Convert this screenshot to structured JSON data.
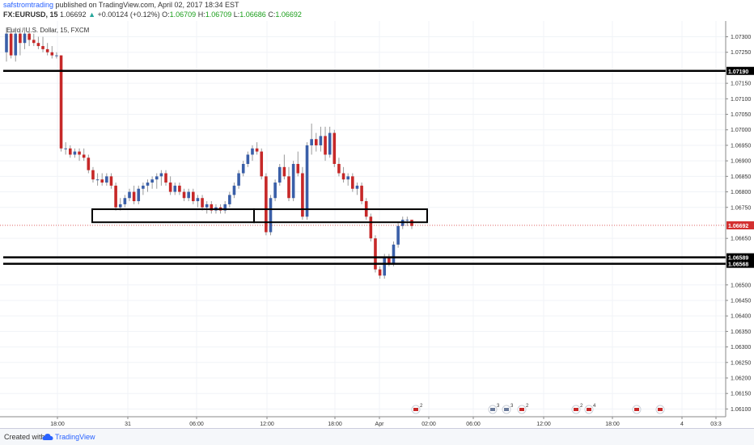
{
  "header": {
    "author": "safstromtrading",
    "published": "published on TradingView.com, April 02, 2017 18:34 EST",
    "symbol": "FX:EURUSD, 15",
    "price": "1.06692",
    "change": "+0.00124 (+0.12%)",
    "o_label": "O:",
    "o_value": "1.06709",
    "h_label": "H:",
    "h_value": "1.06709",
    "l_label": "L:",
    "l_value": "1.06686",
    "c_label": "C:",
    "c_value": "1.06692",
    "up_arrow": "▲"
  },
  "legend": {
    "text": "Euro / U.S. Dollar, 15, FXCM"
  },
  "footer": {
    "created_with": "Created with",
    "brand": "TradingView"
  },
  "colors": {
    "bull": "#3a5fa8",
    "bear": "#c62828",
    "wick": "#999999",
    "current_price": "#d32f2f",
    "box": "#000000"
  },
  "chart_data": {
    "type": "candlestick",
    "y_range": [
      1.06075,
      1.0733
    ],
    "y_ticks": [
      "1.07300",
      "1.07250",
      "1.07150",
      "1.07100",
      "1.07050",
      "1.07000",
      "1.06950",
      "1.06900",
      "1.06850",
      "1.06800",
      "1.06750",
      "1.06650",
      "1.06500",
      "1.06450",
      "1.06400",
      "1.06350",
      "1.06300",
      "1.06250",
      "1.06200",
      "1.06150",
      "1.06100"
    ],
    "x_ticks": [
      "18:00",
      "31",
      "06:00",
      "12:00",
      "18:00",
      "Apr",
      "02:00",
      "06:00",
      "12:00",
      "18:00",
      "4",
      "03:3"
    ],
    "labeled_levels": [
      {
        "label": "1.07190",
        "value": 1.0719
      },
      {
        "label": "1.06589",
        "value": 1.06589
      },
      {
        "label": "1.06568",
        "value": 1.06568
      }
    ],
    "current_price": {
      "label": "1.06692",
      "value": 1.06692
    },
    "candles": [
      [
        1.0725,
        1.0733,
        1.0722,
        1.0731
      ],
      [
        1.0731,
        1.0733,
        1.0723,
        1.0724
      ],
      [
        1.0724,
        1.0733,
        1.0722,
        1.0731
      ],
      [
        1.0731,
        1.0733,
        1.0724,
        1.0728
      ],
      [
        1.0728,
        1.0733,
        1.0726,
        1.0731
      ],
      [
        1.0731,
        1.0733,
        1.0727,
        1.0729
      ],
      [
        1.0729,
        1.0731,
        1.0727,
        1.0728
      ],
      [
        1.0728,
        1.073,
        1.0726,
        1.0727
      ],
      [
        1.0727,
        1.073,
        1.0725,
        1.0726
      ],
      [
        1.0726,
        1.0728,
        1.0724,
        1.0725
      ],
      [
        1.0725,
        1.0727,
        1.0723,
        1.0724
      ],
      [
        1.0724,
        1.0725,
        1.0723,
        1.0724
      ],
      [
        1.0724,
        1.0724,
        1.0693,
        1.0694
      ],
      [
        1.0694,
        1.0696,
        1.0692,
        1.0694
      ],
      [
        1.0694,
        1.0695,
        1.0691,
        1.0692
      ],
      [
        1.0692,
        1.0694,
        1.0691,
        1.0693
      ],
      [
        1.0693,
        1.0694,
        1.069,
        1.0692
      ],
      [
        1.0692,
        1.0694,
        1.069,
        1.0691
      ],
      [
        1.0691,
        1.0692,
        1.0686,
        1.0687
      ],
      [
        1.0687,
        1.0688,
        1.0683,
        1.0684
      ],
      [
        1.0684,
        1.0686,
        1.0682,
        1.0684
      ],
      [
        1.0684,
        1.0686,
        1.0682,
        1.0683
      ],
      [
        1.0683,
        1.0686,
        1.0682,
        1.0685
      ],
      [
        1.0685,
        1.0686,
        1.0681,
        1.0682
      ],
      [
        1.0682,
        1.0683,
        1.0674,
        1.0675
      ],
      [
        1.0675,
        1.0678,
        1.0674,
        1.0676
      ],
      [
        1.0676,
        1.0679,
        1.0675,
        1.0678
      ],
      [
        1.0678,
        1.0681,
        1.0677,
        1.068
      ],
      [
        1.068,
        1.0682,
        1.0676,
        1.0677
      ],
      [
        1.0677,
        1.0682,
        1.0676,
        1.0681
      ],
      [
        1.0681,
        1.0683,
        1.0679,
        1.0682
      ],
      [
        1.0682,
        1.0684,
        1.068,
        1.0683
      ],
      [
        1.0683,
        1.0685,
        1.0681,
        1.0684
      ],
      [
        1.0684,
        1.0686,
        1.0681,
        1.0685
      ],
      [
        1.0685,
        1.0687,
        1.0682,
        1.0686
      ],
      [
        1.0686,
        1.0687,
        1.0682,
        1.0683
      ],
      [
        1.0683,
        1.0685,
        1.0679,
        1.068
      ],
      [
        1.068,
        1.0683,
        1.0679,
        1.0682
      ],
      [
        1.0682,
        1.0683,
        1.0679,
        1.068
      ],
      [
        1.068,
        1.0681,
        1.0677,
        1.0678
      ],
      [
        1.0678,
        1.0681,
        1.0677,
        1.068
      ],
      [
        1.068,
        1.0681,
        1.0676,
        1.0677
      ],
      [
        1.0677,
        1.0679,
        1.0675,
        1.0678
      ],
      [
        1.0678,
        1.0679,
        1.0674,
        1.0675
      ],
      [
        1.0675,
        1.0677,
        1.0673,
        1.0676
      ],
      [
        1.0676,
        1.0677,
        1.0673,
        1.0674
      ],
      [
        1.0674,
        1.0676,
        1.0673,
        1.0675
      ],
      [
        1.0675,
        1.0676,
        1.0673,
        1.0674
      ],
      [
        1.0674,
        1.0677,
        1.0673,
        1.0676
      ],
      [
        1.0676,
        1.068,
        1.0675,
        1.0679
      ],
      [
        1.0679,
        1.0683,
        1.0678,
        1.0682
      ],
      [
        1.0682,
        1.0687,
        1.0681,
        1.0686
      ],
      [
        1.0686,
        1.069,
        1.0685,
        1.0689
      ],
      [
        1.0689,
        1.0693,
        1.0688,
        1.0692
      ],
      [
        1.0692,
        1.0695,
        1.069,
        1.0694
      ],
      [
        1.0694,
        1.0696,
        1.0692,
        1.0693
      ],
      [
        1.0693,
        1.0694,
        1.0684,
        1.0685
      ],
      [
        1.0685,
        1.0686,
        1.0666,
        1.0667
      ],
      [
        1.0667,
        1.0679,
        1.0666,
        1.0678
      ],
      [
        1.0678,
        1.0684,
        1.0677,
        1.0683
      ],
      [
        1.0683,
        1.0689,
        1.0682,
        1.0688
      ],
      [
        1.0688,
        1.0692,
        1.0684,
        1.0685
      ],
      [
        1.0685,
        1.0688,
        1.0677,
        1.0678
      ],
      [
        1.0678,
        1.069,
        1.0677,
        1.0689
      ],
      [
        1.0689,
        1.0693,
        1.0685,
        1.0686
      ],
      [
        1.0686,
        1.0688,
        1.0671,
        1.0672
      ],
      [
        1.0672,
        1.0696,
        1.0671,
        1.0695
      ],
      [
        1.0695,
        1.0702,
        1.0692,
        1.0697
      ],
      [
        1.0697,
        1.0699,
        1.0693,
        1.0695
      ],
      [
        1.0695,
        1.0701,
        1.0693,
        1.0698
      ],
      [
        1.0698,
        1.0701,
        1.069,
        1.0692
      ],
      [
        1.0692,
        1.0701,
        1.0691,
        1.0699
      ],
      [
        1.0699,
        1.07,
        1.0688,
        1.0689
      ],
      [
        1.0689,
        1.0691,
        1.0685,
        1.0686
      ],
      [
        1.0686,
        1.0688,
        1.0683,
        1.0684
      ],
      [
        1.0684,
        1.0686,
        1.0682,
        1.0685
      ],
      [
        1.0685,
        1.0686,
        1.068,
        1.0681
      ],
      [
        1.0681,
        1.0683,
        1.0679,
        1.0682
      ],
      [
        1.0682,
        1.0683,
        1.0676,
        1.0677
      ],
      [
        1.0677,
        1.0678,
        1.0671,
        1.0672
      ],
      [
        1.0672,
        1.0673,
        1.0664,
        1.0665
      ],
      [
        1.0665,
        1.0666,
        1.0654,
        1.0655
      ],
      [
        1.0655,
        1.0656,
        1.0652,
        1.0653
      ],
      [
        1.0653,
        1.066,
        1.0652,
        1.0659
      ],
      [
        1.0659,
        1.066,
        1.0656,
        1.0657
      ],
      [
        1.0657,
        1.0664,
        1.0656,
        1.0663
      ],
      [
        1.0663,
        1.067,
        1.0662,
        1.0669
      ],
      [
        1.0669,
        1.0672,
        1.0668,
        1.0671
      ],
      [
        1.0671,
        1.0672,
        1.0669,
        1.0671
      ],
      [
        1.0671,
        1.0671,
        1.0668,
        1.0669
      ]
    ]
  },
  "annotations": {
    "event_markers": [
      {
        "label": "2",
        "icon": "flag-icon"
      },
      {
        "label": "3",
        "icon": "globe-icon"
      },
      {
        "label": "3",
        "icon": "globe-icon"
      },
      {
        "label": "2",
        "icon": "flag-icon"
      },
      {
        "label": "2",
        "icon": "flag-icon"
      },
      {
        "label": "4",
        "icon": "flag-icon"
      },
      {
        "label": "",
        "icon": "flag-icon"
      },
      {
        "label": "",
        "icon": "flag-icon"
      }
    ]
  }
}
